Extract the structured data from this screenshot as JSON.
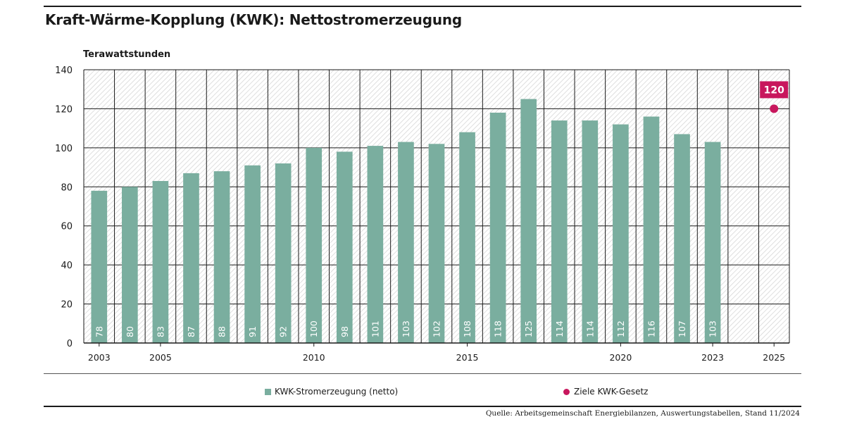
{
  "header": {
    "title": "Kraft-Wärme-Kopplung (KWK): Nettostromerzeugung",
    "unit_label": "Terawattstunden"
  },
  "legend": {
    "bar_series": "KWK-Stromerzeugung (netto)",
    "target_series": "Ziele KWK-Gesetz"
  },
  "source": "Quelle: Arbeitsgemeinschaft Energiebilanzen, Auswertungstabellen, Stand 11/2024",
  "colors": {
    "bar": "#7aae9f",
    "target": "#c8175d",
    "grid": "#1a1a1a",
    "hatch": "#d6d6d6"
  },
  "chart_data": {
    "type": "bar",
    "title": "Kraft-Wärme-Kopplung (KWK): Nettostromerzeugung",
    "ylabel": "Terawattstunden",
    "ylim": [
      0,
      140
    ],
    "yticks": [
      0,
      20,
      40,
      60,
      80,
      100,
      120,
      140
    ],
    "grid": true,
    "legend_position": "bottom",
    "categories": [
      "2003",
      "2004",
      "2005",
      "2006",
      "2007",
      "2008",
      "2009",
      "2010",
      "2011",
      "2012",
      "2013",
      "2014",
      "2015",
      "2016",
      "2017",
      "2018",
      "2019",
      "2020",
      "2021",
      "2022",
      "2023",
      "2024",
      "2025"
    ],
    "x_tick_labels": [
      "2003",
      "",
      "2005",
      "",
      "",
      "",
      "",
      "2010",
      "",
      "",
      "",
      "",
      "2015",
      "",
      "",
      "",
      "",
      "2020",
      "",
      "",
      "2023",
      "",
      "2025"
    ],
    "series": [
      {
        "name": "KWK-Stromerzeugung (netto)",
        "values": [
          78,
          80,
          83,
          87,
          88,
          91,
          92,
          100,
          98,
          101,
          103,
          102,
          108,
          118,
          125,
          114,
          114,
          112,
          116,
          107,
          103,
          null,
          null
        ],
        "value_labels": [
          "78",
          "80",
          "83",
          "87",
          "88",
          "91",
          "92",
          "100",
          "98",
          "101",
          "103",
          "102",
          "108",
          "118",
          "125",
          "114",
          "114",
          "112",
          "116",
          "107",
          "103",
          "",
          ""
        ]
      },
      {
        "name": "Ziele KWK-Gesetz",
        "points": [
          {
            "x": "2025",
            "y": 120,
            "label": "120"
          }
        ]
      }
    ]
  }
}
